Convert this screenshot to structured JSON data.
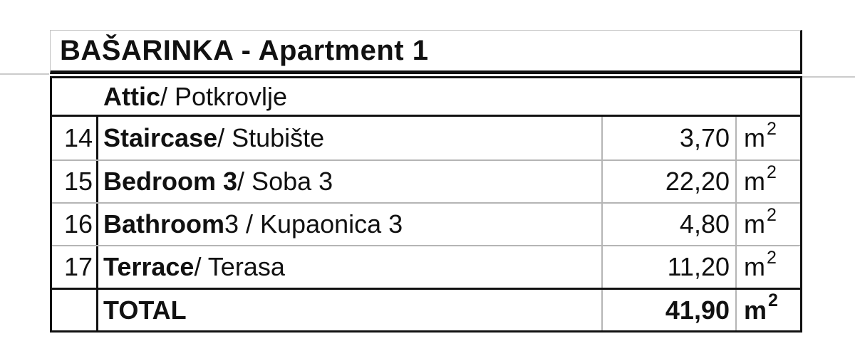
{
  "title": "BAŠARINKA - Apartment 1",
  "section": {
    "name_bold": "Attic",
    "name_rest": " / Potkrovlje"
  },
  "rows": [
    {
      "num": "14",
      "name_bold": "Staircase",
      "name_rest": " / Stubište",
      "value": "3,70",
      "unit_base": "m",
      "unit_sup": "2"
    },
    {
      "num": "15",
      "name_bold": "Bedroom 3",
      "name_rest": " / Soba 3",
      "value": "22,20",
      "unit_base": "m",
      "unit_sup": "2"
    },
    {
      "num": "16",
      "name_bold": "Bathroom",
      "name_rest": " 3 / Kupaonica 3",
      "value": "4,80",
      "unit_base": "m",
      "unit_sup": "2"
    },
    {
      "num": "17",
      "name_bold": "Terrace",
      "name_rest": " / Terasa",
      "value": "11,20",
      "unit_base": "m",
      "unit_sup": "2"
    }
  ],
  "total": {
    "label": "TOTAL",
    "value": "41,90",
    "unit_base": "m",
    "unit_sup": "2"
  },
  "colors": {
    "text": "#111111",
    "border_dark": "#111111",
    "grid_light": "#b5b5b5",
    "gridline_outer": "#cbcbcb",
    "background": "#ffffff"
  }
}
